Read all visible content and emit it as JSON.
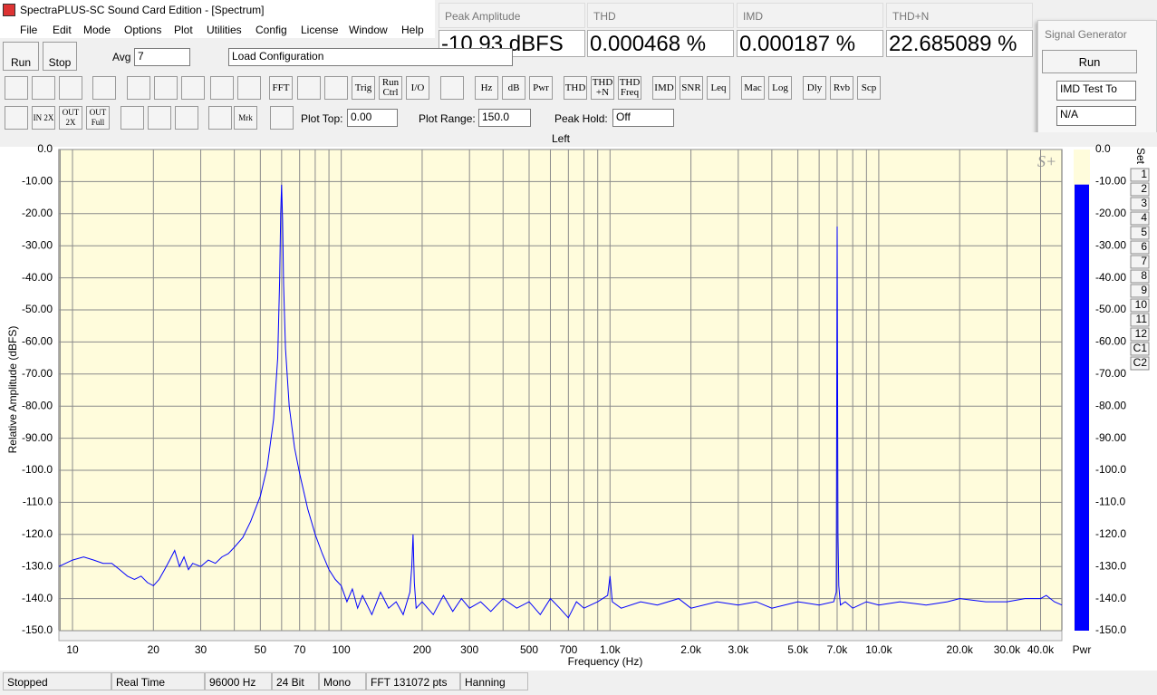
{
  "window": {
    "title": "SpectraPLUS-SC Sound Card Edition - [Spectrum]",
    "menu": [
      "File",
      "Edit",
      "Mode",
      "Options",
      "Plot",
      "Utilities",
      "Config",
      "License",
      "Window",
      "Help"
    ]
  },
  "meters": [
    {
      "label": "Peak Amplitude",
      "value": "-10.93 dBFS"
    },
    {
      "label": "THD",
      "value": "0.000468 %"
    },
    {
      "label": "IMD",
      "value": "0.000187 %"
    },
    {
      "label": "THD+N",
      "value": "22.685089 %"
    }
  ],
  "signal_generator": {
    "title": "Signal Generator",
    "run": "Run",
    "mode": "IMD Test To",
    "option": "N/A"
  },
  "toolbar": {
    "run": "Run",
    "stop": "Stop",
    "avg_label": "Avg",
    "avg": "7",
    "config": "Load Configuration",
    "buttons": [
      "FFT",
      "Trig",
      "Run Ctrl",
      "I/O",
      "Hz",
      "dB",
      "Pwr",
      "THD",
      "THD +N",
      "THD Freq",
      "IMD",
      "SNR",
      "Leq",
      "Mac",
      "Log",
      "Dly",
      "Rvb",
      "Scp"
    ],
    "zoom_buttons": [
      "IN 2X",
      "OUT 2X",
      "OUT Full",
      "Mrk"
    ],
    "plot_top_label": "Plot Top:",
    "plot_top": "0.00",
    "plot_range_label": "Plot Range:",
    "plot_range": "150.0",
    "peak_hold_label": "Peak Hold:",
    "peak_hold": "Off"
  },
  "chart_data": {
    "type": "line",
    "title": "Left",
    "x_label": "Frequency (Hz)",
    "y_label": "Relative Amplitude (dBFS)",
    "x_scale": "log",
    "grid": true,
    "minor_grid": true,
    "color": "#0000ff",
    "xlim": [
      8.9,
      48000
    ],
    "ylim": [
      -150,
      0
    ],
    "xticks": [
      10,
      20,
      30,
      50,
      70,
      100,
      200,
      300,
      500,
      700,
      {
        "value": 1000,
        "label": "1.0k"
      },
      {
        "value": 2000,
        "label": "2.0k"
      },
      {
        "value": 3000,
        "label": "3.0k"
      },
      {
        "value": 5000,
        "label": "5.0k"
      },
      {
        "value": 7000,
        "label": "7.0k"
      },
      {
        "value": 10000,
        "label": "10.0k"
      },
      {
        "value": 20000,
        "label": "20.0k"
      },
      {
        "value": 30000,
        "label": "30.0k"
      },
      {
        "value": 40000,
        "label": "40.0k"
      }
    ],
    "yticks": [
      {
        "value": 0,
        "label": "0.0"
      },
      {
        "value": -10,
        "label": "-10.00"
      },
      {
        "value": -20,
        "label": "-20.00"
      },
      {
        "value": -30,
        "label": "-30.00"
      },
      {
        "value": -40,
        "label": "-40.00"
      },
      {
        "value": -50,
        "label": "-50.00"
      },
      {
        "value": -60,
        "label": "-60.00"
      },
      {
        "value": -70,
        "label": "-70.00"
      },
      {
        "value": -80,
        "label": "-80.00"
      },
      {
        "value": -90,
        "label": "-90.00"
      },
      {
        "value": -100,
        "label": "-100.0"
      },
      {
        "value": -110,
        "label": "-110.0"
      },
      {
        "value": -120,
        "label": "-120.0"
      },
      {
        "value": -130,
        "label": "-130.0"
      },
      {
        "value": -140,
        "label": "-140.0"
      },
      {
        "value": -150,
        "label": "-150.0"
      }
    ],
    "x": [
      8.9,
      10,
      11,
      12,
      13,
      14,
      15,
      16,
      17,
      18,
      19,
      20,
      21,
      22,
      23,
      24,
      25,
      26,
      27,
      28,
      30,
      32,
      34,
      36,
      38,
      40,
      43,
      46,
      50,
      53,
      56,
      58,
      59,
      59.5,
      60,
      60.5,
      61,
      62,
      64,
      67,
      70,
      75,
      80,
      85,
      90,
      95,
      100,
      105,
      110,
      115,
      120,
      130,
      140,
      150,
      160,
      170,
      180,
      183,
      185,
      187,
      190,
      200,
      220,
      240,
      260,
      280,
      300,
      330,
      360,
      400,
      450,
      500,
      550,
      600,
      650,
      700,
      750,
      800,
      900,
      980,
      1000,
      1020,
      1100,
      1300,
      1500,
      1800,
      2000,
      2500,
      3000,
      3500,
      4000,
      5000,
      6000,
      6800,
      6950,
      7000,
      7020,
      7050,
      7100,
      7200,
      7500,
      8000,
      9000,
      10000,
      12000,
      15000,
      18000,
      20000,
      25000,
      30000,
      35000,
      40000,
      42000,
      45000,
      48000
    ],
    "values": [
      -130,
      -128,
      -127,
      -128,
      -129,
      -129,
      -131,
      -133,
      -134,
      -133,
      -135,
      -136,
      -134,
      -131,
      -128,
      -125,
      -130,
      -127,
      -131,
      -129,
      -130,
      -128,
      -129,
      -127,
      -126,
      -124,
      -121,
      -116,
      -108,
      -99,
      -84,
      -65,
      -40,
      -20,
      -11,
      -22,
      -42,
      -62,
      -80,
      -93,
      -101,
      -112,
      -120,
      -126,
      -131,
      -134,
      -136,
      -141,
      -137,
      -143,
      -139,
      -145,
      -138,
      -143,
      -141,
      -145,
      -138,
      -130,
      -120,
      -135,
      -143,
      -141,
      -145,
      -139,
      -144,
      -140,
      -143,
      -141,
      -144,
      -140,
      -143,
      -141,
      -145,
      -140,
      -143,
      -146,
      -141,
      -143,
      -141,
      -139,
      -133,
      -141,
      -143,
      -141,
      -142,
      -140,
      -143,
      -141,
      -142,
      -141,
      -143,
      -141,
      -142,
      -141,
      -138,
      -24,
      -55,
      -120,
      -136,
      -142,
      -141,
      -143,
      -141,
      -142,
      -141,
      -142,
      -141,
      -140,
      -141,
      -141,
      -140,
      -140,
      -139,
      -141,
      -142
    ],
    "meter_label": "Pwr",
    "meter_value": -10.93,
    "meter_color": "#0000ff",
    "set_label": "Set",
    "sets": [
      "1",
      "2",
      "3",
      "4",
      "5",
      "6",
      "7",
      "8",
      "9",
      "10",
      "11",
      "12",
      "C1",
      "C2"
    ]
  },
  "status_bar": [
    "Stopped",
    "Real Time",
    "96000 Hz",
    "24 Bit",
    "Mono",
    "FFT 131072 pts",
    "Hanning"
  ]
}
